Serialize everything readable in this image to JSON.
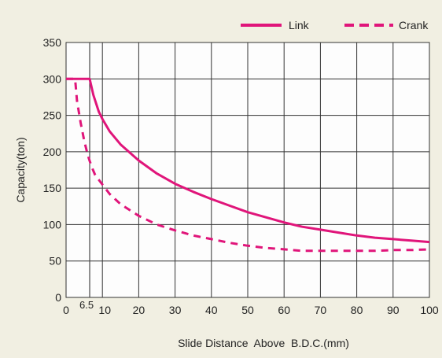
{
  "chart_data": {
    "type": "line",
    "xlabel": "Slide Distance  Above  B.D.C.(mm)",
    "ylabel": "Capacity(ton)",
    "xlim": [
      0,
      100
    ],
    "ylim": [
      0,
      350
    ],
    "x_ticks": [
      0,
      10,
      20,
      30,
      40,
      50,
      60,
      70,
      80,
      90,
      100
    ],
    "y_ticks": [
      0,
      50,
      100,
      150,
      200,
      250,
      300,
      350
    ],
    "annotation": {
      "x": 6.5,
      "label": "6.5"
    },
    "grid": true,
    "legend_position": "top-right",
    "series": [
      {
        "name": "Link",
        "style": "solid",
        "color": "#e0157a",
        "x": [
          0,
          6.5,
          7.5,
          9,
          10,
          12,
          15,
          20,
          25,
          30,
          35,
          40,
          45,
          50,
          55,
          60,
          65,
          70,
          75,
          80,
          85,
          90,
          95,
          100
        ],
        "y": [
          300,
          300,
          278,
          255,
          245,
          228,
          210,
          188,
          170,
          156,
          145,
          135,
          126,
          117,
          110,
          103,
          97,
          93,
          89,
          85,
          82,
          80,
          78,
          76
        ]
      },
      {
        "name": "Crank",
        "style": "dashed",
        "color": "#e0157a",
        "x": [
          0,
          2.5,
          3,
          4,
          5,
          6,
          7,
          8,
          10,
          12,
          15,
          20,
          25,
          30,
          35,
          40,
          45,
          50,
          55,
          60,
          65,
          70,
          75,
          80,
          85,
          90,
          95,
          100
        ],
        "y": [
          300,
          300,
          270,
          240,
          215,
          195,
          180,
          168,
          155,
          142,
          128,
          112,
          100,
          92,
          85,
          80,
          75,
          71,
          68,
          66,
          64,
          64,
          64,
          64,
          64,
          65,
          65,
          66
        ]
      }
    ]
  }
}
